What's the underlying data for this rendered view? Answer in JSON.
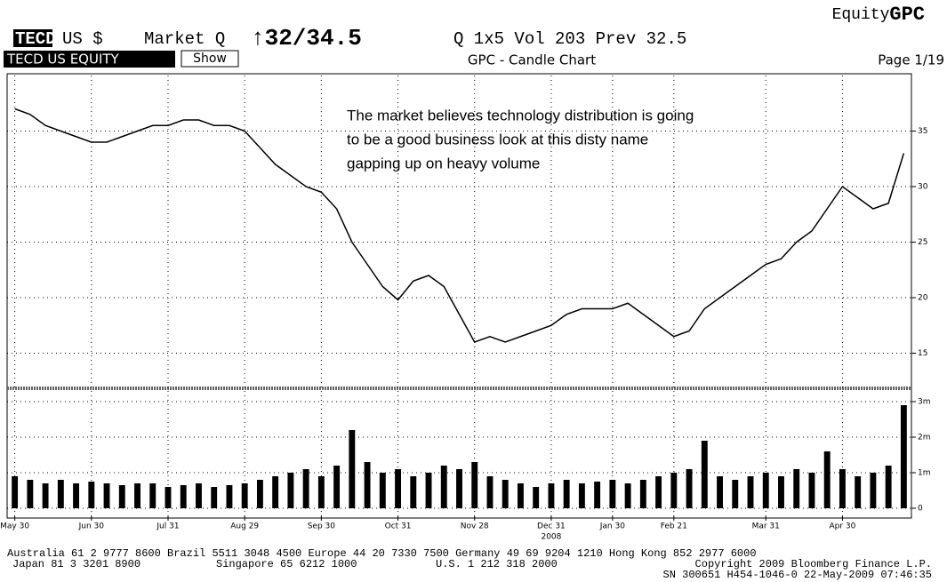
{
  "header": {
    "brand_prefix": "Equity",
    "brand": "GPC",
    "ticker": "TECD",
    "currency": "US $",
    "market": "Market Q",
    "price": "↑32/34.5",
    "quote_rest": "Q  1x5 Vol 203 Prev 32.5",
    "security": "TECD US EQUITY",
    "button": "Show",
    "chart_title": "GPC - Candle Chart",
    "page": "Page 1/19"
  },
  "annotation": [
    "The market believes technology distribution is going",
    "to be a good business look at this disty name",
    "gapping up on heavy volume"
  ],
  "chart_data": [
    {
      "type": "line",
      "color": "#000000",
      "values": [
        37,
        36.5,
        35.5,
        35,
        34.5,
        34,
        34,
        34.5,
        35,
        35.5,
        35.5,
        36,
        36,
        35.5,
        35.5,
        35,
        33.5,
        32,
        31,
        30,
        29.5,
        28,
        25,
        23,
        21,
        19.8,
        21.5,
        22,
        21,
        18.5,
        16,
        16.5,
        16,
        16.5,
        17,
        17.5,
        18.5,
        19,
        19,
        19,
        19.5,
        18.5,
        17.5,
        16.5,
        17,
        19,
        20,
        21,
        22,
        23,
        23.5,
        25,
        26,
        28,
        30,
        29,
        28,
        28.5,
        33
      ],
      "ylim": [
        12,
        40
      ],
      "yticks": [
        15,
        20,
        25,
        30,
        35
      ],
      "grid": true
    },
    {
      "type": "bar",
      "color": "#000000",
      "categories": [
        "May 30",
        null,
        null,
        null,
        null,
        "Jun 30",
        null,
        null,
        null,
        null,
        "Jul 31",
        null,
        null,
        null,
        null,
        "Aug 29",
        null,
        null,
        null,
        null,
        "Sep 30",
        null,
        null,
        null,
        null,
        "Oct 31",
        null,
        null,
        null,
        null,
        "Nov 28",
        null,
        null,
        null,
        null,
        "Dec 31",
        null,
        null,
        null,
        "Jan 30",
        null,
        null,
        null,
        "Feb 21",
        null,
        null,
        null,
        null,
        null,
        "Mar 31",
        null,
        null,
        null,
        null,
        "Apr 30",
        null,
        null,
        null,
        null
      ],
      "xlabel": "2008",
      "values": [
        900000,
        800000,
        700000,
        800000,
        700000,
        750000,
        700000,
        650000,
        700000,
        700000,
        600000,
        650000,
        700000,
        600000,
        650000,
        700000,
        800000,
        900000,
        1000000,
        1100000,
        900000,
        1200000,
        2200000,
        1300000,
        1000000,
        1100000,
        900000,
        1000000,
        1200000,
        1100000,
        1300000,
        900000,
        800000,
        700000,
        600000,
        700000,
        800000,
        700000,
        750000,
        800000,
        700000,
        800000,
        900000,
        1000000,
        1100000,
        1900000,
        900000,
        800000,
        900000,
        1000000,
        900000,
        1100000,
        1000000,
        1600000,
        1100000,
        900000,
        1000000,
        1200000,
        2900000
      ],
      "ylim": [
        -200000,
        3300000
      ],
      "yticks": [
        {
          "value": 3000000,
          "label": "3m"
        },
        {
          "value": 2000000,
          "label": "2m"
        },
        {
          "value": 1000000,
          "label": "1m"
        },
        0
      ],
      "grid": true
    }
  ],
  "footer": {
    "line1": "Australia 61 2 9777 8600 Brazil 5511 3048 4500 Europe 44 20 7330 7500 Germany 49 69 9204 1210 Hong Kong 852 2977 6000",
    "line2": [
      "Japan 81 3 3201 8900",
      "Singapore 65 6212 1000",
      "U.S. 1 212 318 2000",
      "Copyright 2009 Bloomberg Finance L.P."
    ],
    "line3": "SN 300651 H454-1046-0 22-May-2009 07:46:35"
  }
}
